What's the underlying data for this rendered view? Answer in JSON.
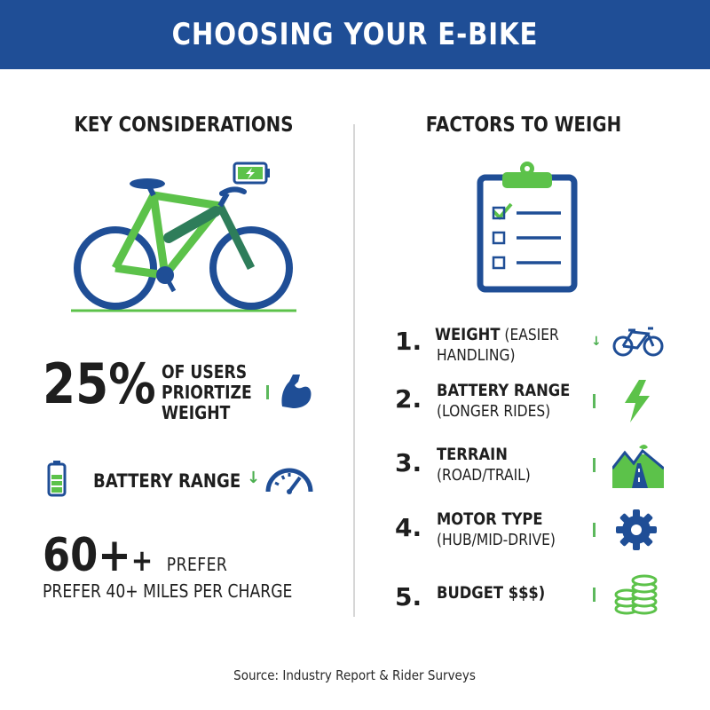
{
  "header": {
    "title": "CHOOSING YOUR E-BIKE"
  },
  "colors": {
    "banner": "#1f4e96",
    "accent_green": "#5cb85c",
    "accent_blue": "#1f4e96"
  },
  "left": {
    "heading": "KEY CONSIDERATIONS",
    "stat1": {
      "value": "25%",
      "line1": "OF USERS",
      "line2": "PRIORTIZE",
      "line3": "WEIGHT",
      "icon": "flexed-arm-icon"
    },
    "stat2": {
      "label": "BATTERY RANGE",
      "icon_left": "battery-icon",
      "icon_right": "speedometer-icon"
    },
    "stat3": {
      "value": "60+",
      "plus": "+",
      "tail": "PREFER",
      "line2": "PREFER 40+ MILES PER CHARGE"
    }
  },
  "right": {
    "heading": "FACTORS TO WEIGH",
    "factors": [
      {
        "num": "1.",
        "title": "WEIGHT",
        "title_rest": " (EASIER",
        "sub": "HANDLING)",
        "icon": "bicycle-icon"
      },
      {
        "num": "2.",
        "title": "BATTERY RANGE",
        "title_rest": "",
        "sub": "(LONGER RIDES)",
        "icon": "lightning-icon"
      },
      {
        "num": "3.",
        "title": "TERRAIN",
        "title_rest": "",
        "sub": "(ROAD/TRAIL)",
        "icon": "mountain-road-icon"
      },
      {
        "num": "4.",
        "title": "MOTOR TYPE",
        "title_rest": "",
        "sub": "(HUB/MID-DRIVE)",
        "icon": "gear-icon"
      },
      {
        "num": "5.",
        "title": "BUDGET $$$)",
        "title_rest": "",
        "sub": "",
        "icon": "coins-icon"
      }
    ]
  },
  "footer": {
    "source": "Source: Industry Report & Rider Surveys"
  }
}
